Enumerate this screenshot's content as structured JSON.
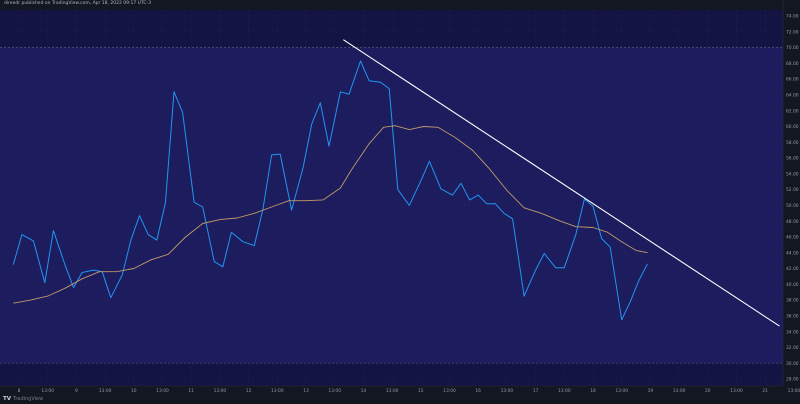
{
  "header": {
    "text": "direedr published on TradingView.com, Apr 18, 2022 09:17 UTC-3"
  },
  "footer": {
    "logo_mark": "TV",
    "logo_text": "TradingView"
  },
  "colors": {
    "background": "#131722",
    "plot_bg": "#141444",
    "band_fill": "#1c1c5e",
    "band_line": "#5a5f85",
    "grid": "#2a2e45",
    "rsi_line": "#2196f3",
    "ma_line": "#c29a6a",
    "trend_line": "#ffffff",
    "axis_text": "#9598a1"
  },
  "chart_data": {
    "type": "line",
    "y_axis": {
      "min": 28,
      "max": 74,
      "ticks": [
        "74.00",
        "72.00",
        "70.00",
        "68.00",
        "66.00",
        "64.00",
        "62.00",
        "60.00",
        "58.00",
        "56.00",
        "54.00",
        "52.00",
        "50.00",
        "48.00",
        "46.00",
        "44.00",
        "42.00",
        "40.00",
        "38.00",
        "36.00",
        "34.00",
        "32.00",
        "30.00",
        "28.00"
      ],
      "tick_values": [
        74,
        72,
        70,
        68,
        66,
        64,
        62,
        60,
        58,
        56,
        54,
        52,
        50,
        48,
        46,
        44,
        42,
        40,
        38,
        36,
        34,
        32,
        30,
        28
      ],
      "band_upper": 70,
      "band_lower": 30
    },
    "x_axis": {
      "min": 0,
      "max": 28,
      "tick_labels": [
        "8",
        "13:00",
        "9",
        "13:00",
        "10",
        "13:00",
        "11",
        "13:00",
        "12",
        "13:00",
        "13",
        "13:00",
        "14",
        "13:00",
        "15",
        "13:00",
        "16",
        "13:00",
        "17",
        "13:00",
        "18",
        "13:00",
        "19",
        "13:00",
        "20",
        "13:00",
        "21",
        "13:00"
      ],
      "tick_positions": [
        0,
        1,
        2,
        3,
        4,
        5,
        6,
        7,
        8,
        9,
        10,
        11,
        12,
        13,
        14,
        15,
        16,
        17,
        18,
        19,
        20,
        21,
        22,
        23,
        24,
        25,
        26,
        27
      ]
    },
    "series": [
      {
        "points": [
          [
            -0.2,
            42.5
          ],
          [
            0.1,
            46.3
          ],
          [
            0.5,
            45.5
          ],
          [
            0.9,
            40.2
          ],
          [
            1.2,
            46.8
          ],
          [
            1.6,
            42.5
          ],
          [
            1.9,
            39.6
          ],
          [
            2.2,
            41.5
          ],
          [
            2.6,
            41.8
          ],
          [
            2.9,
            41.6
          ],
          [
            3.2,
            38.3
          ],
          [
            3.6,
            41.2
          ],
          [
            3.9,
            45.6
          ],
          [
            4.2,
            48.7
          ],
          [
            4.5,
            46.3
          ],
          [
            4.8,
            45.6
          ],
          [
            5.1,
            50.3
          ],
          [
            5.4,
            64.4
          ],
          [
            5.7,
            61.8
          ],
          [
            6.1,
            50.4
          ],
          [
            6.4,
            49.8
          ],
          [
            6.8,
            42.9
          ],
          [
            7.1,
            42.2
          ],
          [
            7.4,
            46.6
          ],
          [
            7.8,
            45.4
          ],
          [
            8.2,
            44.9
          ],
          [
            8.5,
            49.5
          ],
          [
            8.8,
            56.4
          ],
          [
            9.1,
            56.5
          ],
          [
            9.5,
            49.4
          ],
          [
            9.9,
            54.8
          ],
          [
            10.2,
            60.3
          ],
          [
            10.5,
            63.0
          ],
          [
            10.8,
            57.5
          ],
          [
            11.2,
            64.4
          ],
          [
            11.5,
            64.1
          ],
          [
            11.9,
            68.3
          ],
          [
            12.2,
            65.8
          ],
          [
            12.6,
            65.6
          ],
          [
            12.9,
            64.8
          ],
          [
            13.2,
            52.0
          ],
          [
            13.6,
            50.0
          ],
          [
            14.0,
            53.1
          ],
          [
            14.3,
            55.6
          ],
          [
            14.7,
            52.1
          ],
          [
            15.1,
            51.3
          ],
          [
            15.4,
            52.8
          ],
          [
            15.7,
            50.7
          ],
          [
            16.0,
            51.3
          ],
          [
            16.3,
            50.2
          ],
          [
            16.6,
            50.2
          ],
          [
            16.9,
            49.0
          ],
          [
            17.2,
            48.3
          ],
          [
            17.6,
            38.5
          ],
          [
            18.0,
            41.8
          ],
          [
            18.3,
            43.9
          ],
          [
            18.7,
            42.1
          ],
          [
            19.0,
            42.1
          ],
          [
            19.4,
            46.3
          ],
          [
            19.7,
            50.8
          ],
          [
            20.0,
            49.9
          ],
          [
            20.3,
            45.8
          ],
          [
            20.6,
            44.7
          ],
          [
            21.0,
            35.5
          ],
          [
            21.3,
            37.8
          ],
          [
            21.6,
            40.5
          ],
          [
            21.9,
            42.6
          ]
        ]
      },
      {
        "points": [
          [
            -0.2,
            37.6
          ],
          [
            0.4,
            38.0
          ],
          [
            1.0,
            38.5
          ],
          [
            1.6,
            39.5
          ],
          [
            2.2,
            40.7
          ],
          [
            2.8,
            41.6
          ],
          [
            3.4,
            41.6
          ],
          [
            4.0,
            42.0
          ],
          [
            4.6,
            43.1
          ],
          [
            5.2,
            43.8
          ],
          [
            5.8,
            46.0
          ],
          [
            6.4,
            47.7
          ],
          [
            7.0,
            48.2
          ],
          [
            7.6,
            48.4
          ],
          [
            8.2,
            49.0
          ],
          [
            8.8,
            49.8
          ],
          [
            9.4,
            50.6
          ],
          [
            10.0,
            50.6
          ],
          [
            10.6,
            50.7
          ],
          [
            11.2,
            52.2
          ],
          [
            11.6,
            54.6
          ],
          [
            12.2,
            57.8
          ],
          [
            12.7,
            59.9
          ],
          [
            13.1,
            60.1
          ],
          [
            13.6,
            59.6
          ],
          [
            14.1,
            60.0
          ],
          [
            14.6,
            59.9
          ],
          [
            15.2,
            58.6
          ],
          [
            15.8,
            57.0
          ],
          [
            16.4,
            54.6
          ],
          [
            17.0,
            51.9
          ],
          [
            17.6,
            49.7
          ],
          [
            18.2,
            49.0
          ],
          [
            18.8,
            48.1
          ],
          [
            19.4,
            47.3
          ],
          [
            20.0,
            47.2
          ],
          [
            20.5,
            46.6
          ],
          [
            21.0,
            45.4
          ],
          [
            21.5,
            44.3
          ],
          [
            21.9,
            44.0
          ]
        ]
      },
      {
        "points": [
          [
            11.3,
            71.0
          ],
          [
            26.5,
            34.7
          ]
        ]
      }
    ]
  }
}
